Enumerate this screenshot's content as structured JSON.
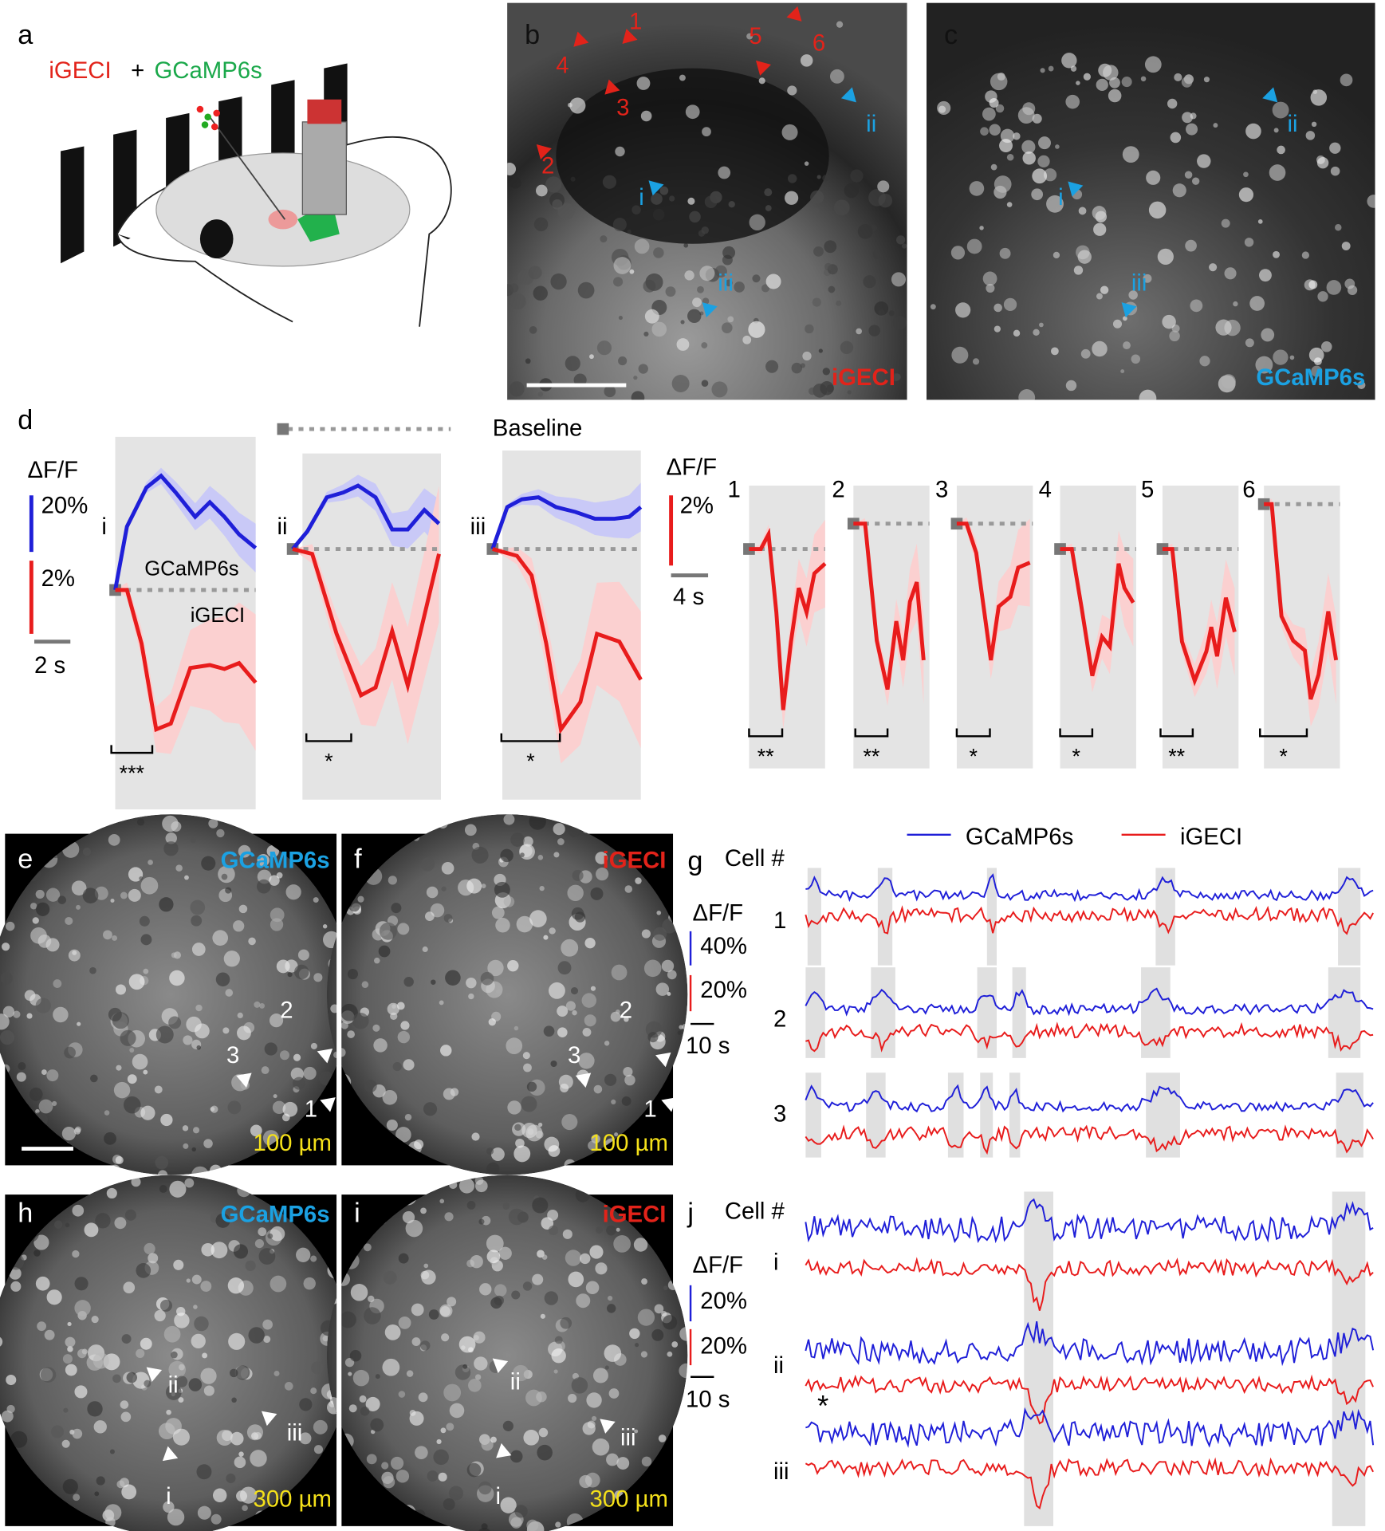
{
  "panel_a": {
    "label": "a",
    "indicator_1": "iGECI",
    "plus": "+",
    "indicator_2": "GCaMP6s"
  },
  "panel_b": {
    "label": "b",
    "cells": [
      "1",
      "2",
      "3",
      "4",
      "5",
      "6"
    ],
    "rois": [
      "i",
      "ii",
      "iii"
    ],
    "indicator": "iGECI"
  },
  "panel_c": {
    "label": "c",
    "rois": [
      "i",
      "ii",
      "iii"
    ],
    "indicator": "GCaMP6s"
  },
  "panel_d": {
    "label": "d",
    "baseline": "Baseline",
    "left": {
      "axis_label": "ΔF/F",
      "scale_blue": "20%",
      "scale_red": "2%",
      "time_scale": "2 s",
      "trace_blue": "GCaMP6s",
      "trace_red": "iGECI",
      "rois": [
        "i",
        "ii",
        "iii"
      ],
      "significance": [
        "***",
        "*",
        "*"
      ]
    },
    "right": {
      "axis_label": "ΔF/F",
      "scale_red": "2%",
      "time_scale": "4 s",
      "cells": [
        "1",
        "2",
        "3",
        "4",
        "5",
        "6"
      ],
      "significance": [
        "**",
        "**",
        "*",
        "*",
        "**",
        "*"
      ]
    }
  },
  "panel_e": {
    "label": "e",
    "indicator": "GCaMP6s",
    "cells": [
      "1",
      "2",
      "3"
    ],
    "depth": "100 µm"
  },
  "panel_f": {
    "label": "f",
    "indicator": "iGECI",
    "cells": [
      "1",
      "2",
      "3"
    ],
    "depth": "100 µm"
  },
  "panel_g": {
    "label": "g",
    "cell_header": "Cell #",
    "legend": [
      "GCaMP6s",
      "iGECI"
    ],
    "axis_label": "ΔF/F",
    "scale_blue": "40%",
    "scale_red": "20%",
    "time_scale": "10 s",
    "cells": [
      "1",
      "2",
      "3"
    ]
  },
  "panel_h": {
    "label": "h",
    "indicator": "GCaMP6s",
    "rois": [
      "i",
      "ii",
      "iii"
    ],
    "depth": "300 µm"
  },
  "panel_i": {
    "label": "i",
    "indicator": "iGECI",
    "rois": [
      "i",
      "ii",
      "iii"
    ],
    "depth": "300 µm"
  },
  "panel_j": {
    "label": "j",
    "cell_header": "Cell #",
    "axis_label": "ΔF/F",
    "scale_blue": "20%",
    "scale_red": "20%",
    "time_scale": "10 s",
    "cells": [
      "i",
      "ii",
      "iii"
    ],
    "note": "*"
  }
}
